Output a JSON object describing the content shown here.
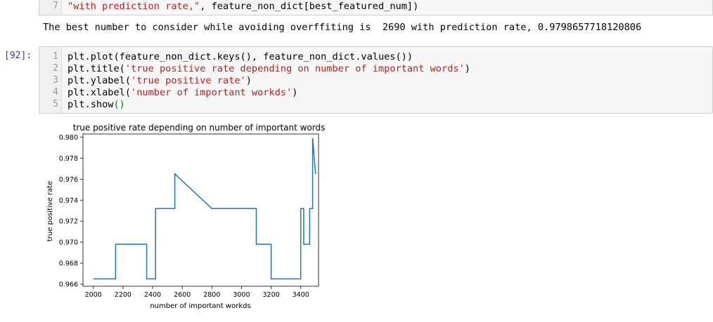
{
  "prev_cell": {
    "line_number": "7",
    "code_string": "\"with prediction rate,\"",
    "code_rest": ", feature_non_dict[best_featured_num])"
  },
  "output": {
    "text": "The best number to consider while avoiding overffiting is  2690 with prediction rate, 0.9798657718120806"
  },
  "cell": {
    "prompt": "[92]:",
    "lines": [
      {
        "num": "1",
        "parts": [
          {
            "t": "plt.plot(feature_non_dict.keys(), feature_non_dict.values())",
            "c": ""
          }
        ]
      },
      {
        "num": "2",
        "parts": [
          {
            "t": "plt.title(",
            "c": ""
          },
          {
            "t": "'true positive rate depending on number of important words'",
            "c": "str"
          },
          {
            "t": ")",
            "c": ""
          }
        ]
      },
      {
        "num": "3",
        "parts": [
          {
            "t": "plt.ylabel(",
            "c": ""
          },
          {
            "t": "'true positive rate'",
            "c": "str"
          },
          {
            "t": ")",
            "c": ""
          }
        ]
      },
      {
        "num": "4",
        "parts": [
          {
            "t": "plt.xlabel(",
            "c": ""
          },
          {
            "t": "'number of important workds'",
            "c": "str"
          },
          {
            "t": ")",
            "c": ""
          }
        ]
      },
      {
        "num": "5",
        "parts": [
          {
            "t": "plt.show",
            "c": ""
          },
          {
            "t": "()",
            "c": "grn"
          }
        ]
      }
    ]
  },
  "chart_data": {
    "type": "line",
    "title": "true positive rate depending on number of important words",
    "xlabel": "number of important workds",
    "ylabel": "true positive rate",
    "xlim": [
      1930,
      3520
    ],
    "ylim": [
      0.9658,
      0.9803
    ],
    "xticks": [
      2000,
      2200,
      2400,
      2600,
      2800,
      3000,
      3200,
      3400
    ],
    "yticks": [
      0.966,
      0.968,
      0.97,
      0.972,
      0.974,
      0.976,
      0.978,
      0.98
    ],
    "ytick_labels": [
      "0.966",
      "0.968",
      "0.970",
      "0.972",
      "0.974",
      "0.976",
      "0.978",
      "0.980"
    ],
    "line_color": "#1f77b4",
    "grid": false,
    "series": [
      {
        "x": [
          2000,
          2150,
          2150,
          2360,
          2360,
          2420,
          2420,
          2550,
          2550,
          2800,
          2800,
          3100,
          3100,
          3200,
          3200,
          3400,
          3400,
          3420,
          3420,
          3460,
          3460,
          3480,
          3480,
          3500
        ],
        "y": [
          0.9665,
          0.9665,
          0.9698,
          0.9698,
          0.9665,
          0.9665,
          0.9732,
          0.9732,
          0.9765,
          0.9732,
          0.9732,
          0.9732,
          0.9698,
          0.9698,
          0.9665,
          0.9665,
          0.9732,
          0.9732,
          0.9698,
          0.9698,
          0.9732,
          0.9732,
          0.9799,
          0.9765
        ]
      }
    ]
  }
}
